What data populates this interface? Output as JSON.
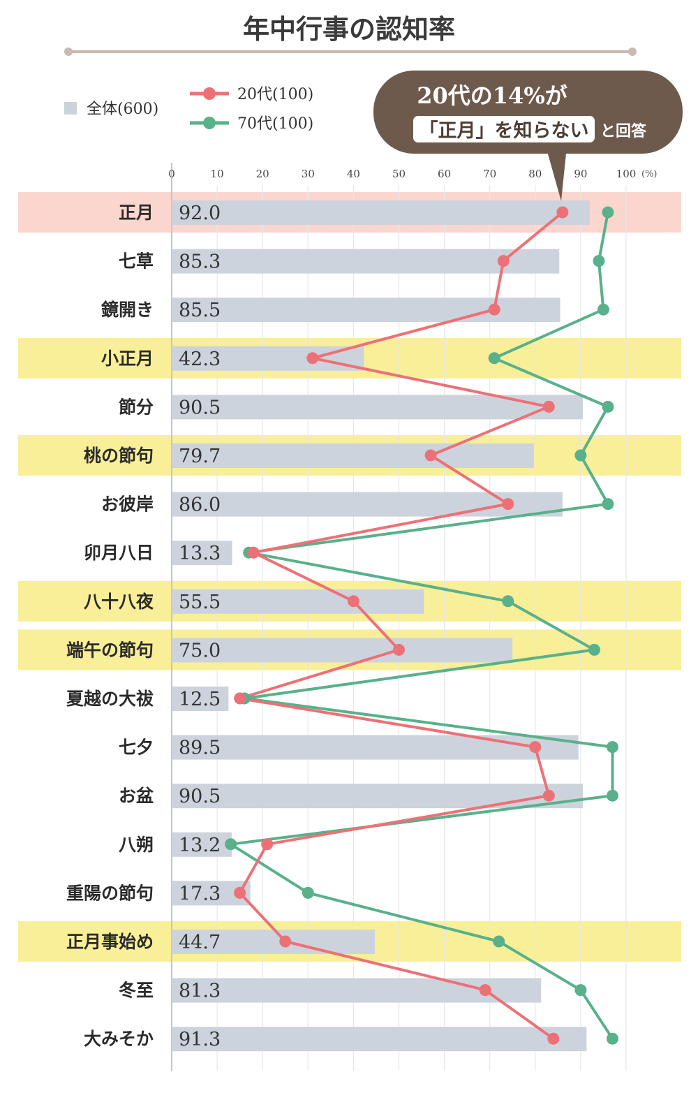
{
  "chart_data": {
    "type": "bar",
    "title": "年中行事の認知率",
    "unit": "(%)",
    "xlim": [
      0,
      100
    ],
    "xticks": [
      0,
      10,
      20,
      30,
      40,
      50,
      60,
      70,
      80,
      90,
      100
    ],
    "legend": [
      {
        "name": "全体(600)",
        "kind": "bar",
        "color": "#cdd3dc"
      },
      {
        "name": "20代(100)",
        "kind": "line",
        "color": "#ec7177"
      },
      {
        "name": "70代(100)",
        "kind": "line",
        "color": "#58b18a"
      }
    ],
    "categories": [
      "正月",
      "七草",
      "鏡開き",
      "小正月",
      "節分",
      "桃の節句",
      "お彼岸",
      "卯月八日",
      "八十八夜",
      "端午の節句",
      "夏越の大祓",
      "七夕",
      "お盆",
      "八朔",
      "重陽の節句",
      "正月事始め",
      "冬至",
      "大みそか"
    ],
    "highlight": [
      "pink",
      "none",
      "none",
      "yellow",
      "none",
      "yellow",
      "none",
      "none",
      "yellow",
      "yellow",
      "none",
      "none",
      "none",
      "none",
      "none",
      "yellow",
      "none",
      "none"
    ],
    "series": [
      {
        "name": "全体(600)",
        "values": [
          92.0,
          85.3,
          85.5,
          42.3,
          90.5,
          79.7,
          86.0,
          13.3,
          55.5,
          75.0,
          12.5,
          89.5,
          90.5,
          13.2,
          17.3,
          44.7,
          81.3,
          91.3
        ]
      },
      {
        "name": "20代(100)",
        "values": [
          86,
          73,
          71,
          31,
          83,
          57,
          74,
          18,
          40,
          50,
          15,
          80,
          83,
          21,
          15,
          25,
          69,
          84
        ]
      },
      {
        "name": "70代(100)",
        "values": [
          96,
          94,
          95,
          71,
          96,
          90,
          96,
          17,
          74,
          93,
          16,
          97,
          97,
          13,
          30,
          72,
          90,
          97
        ]
      }
    ],
    "callout": {
      "line1": "20代の14%が",
      "line2_highlight": "「正月」を知らない",
      "line2_tail": "と回答"
    },
    "colors": {
      "bar": "#cdd3dc",
      "line20": "#ec7177",
      "line70": "#58b18a",
      "highlight_yellow": "#f8ef98",
      "highlight_pink": "#fbd6cf",
      "callout_bg": "#6e5a4c",
      "title_rule": "#c9bab2"
    }
  }
}
